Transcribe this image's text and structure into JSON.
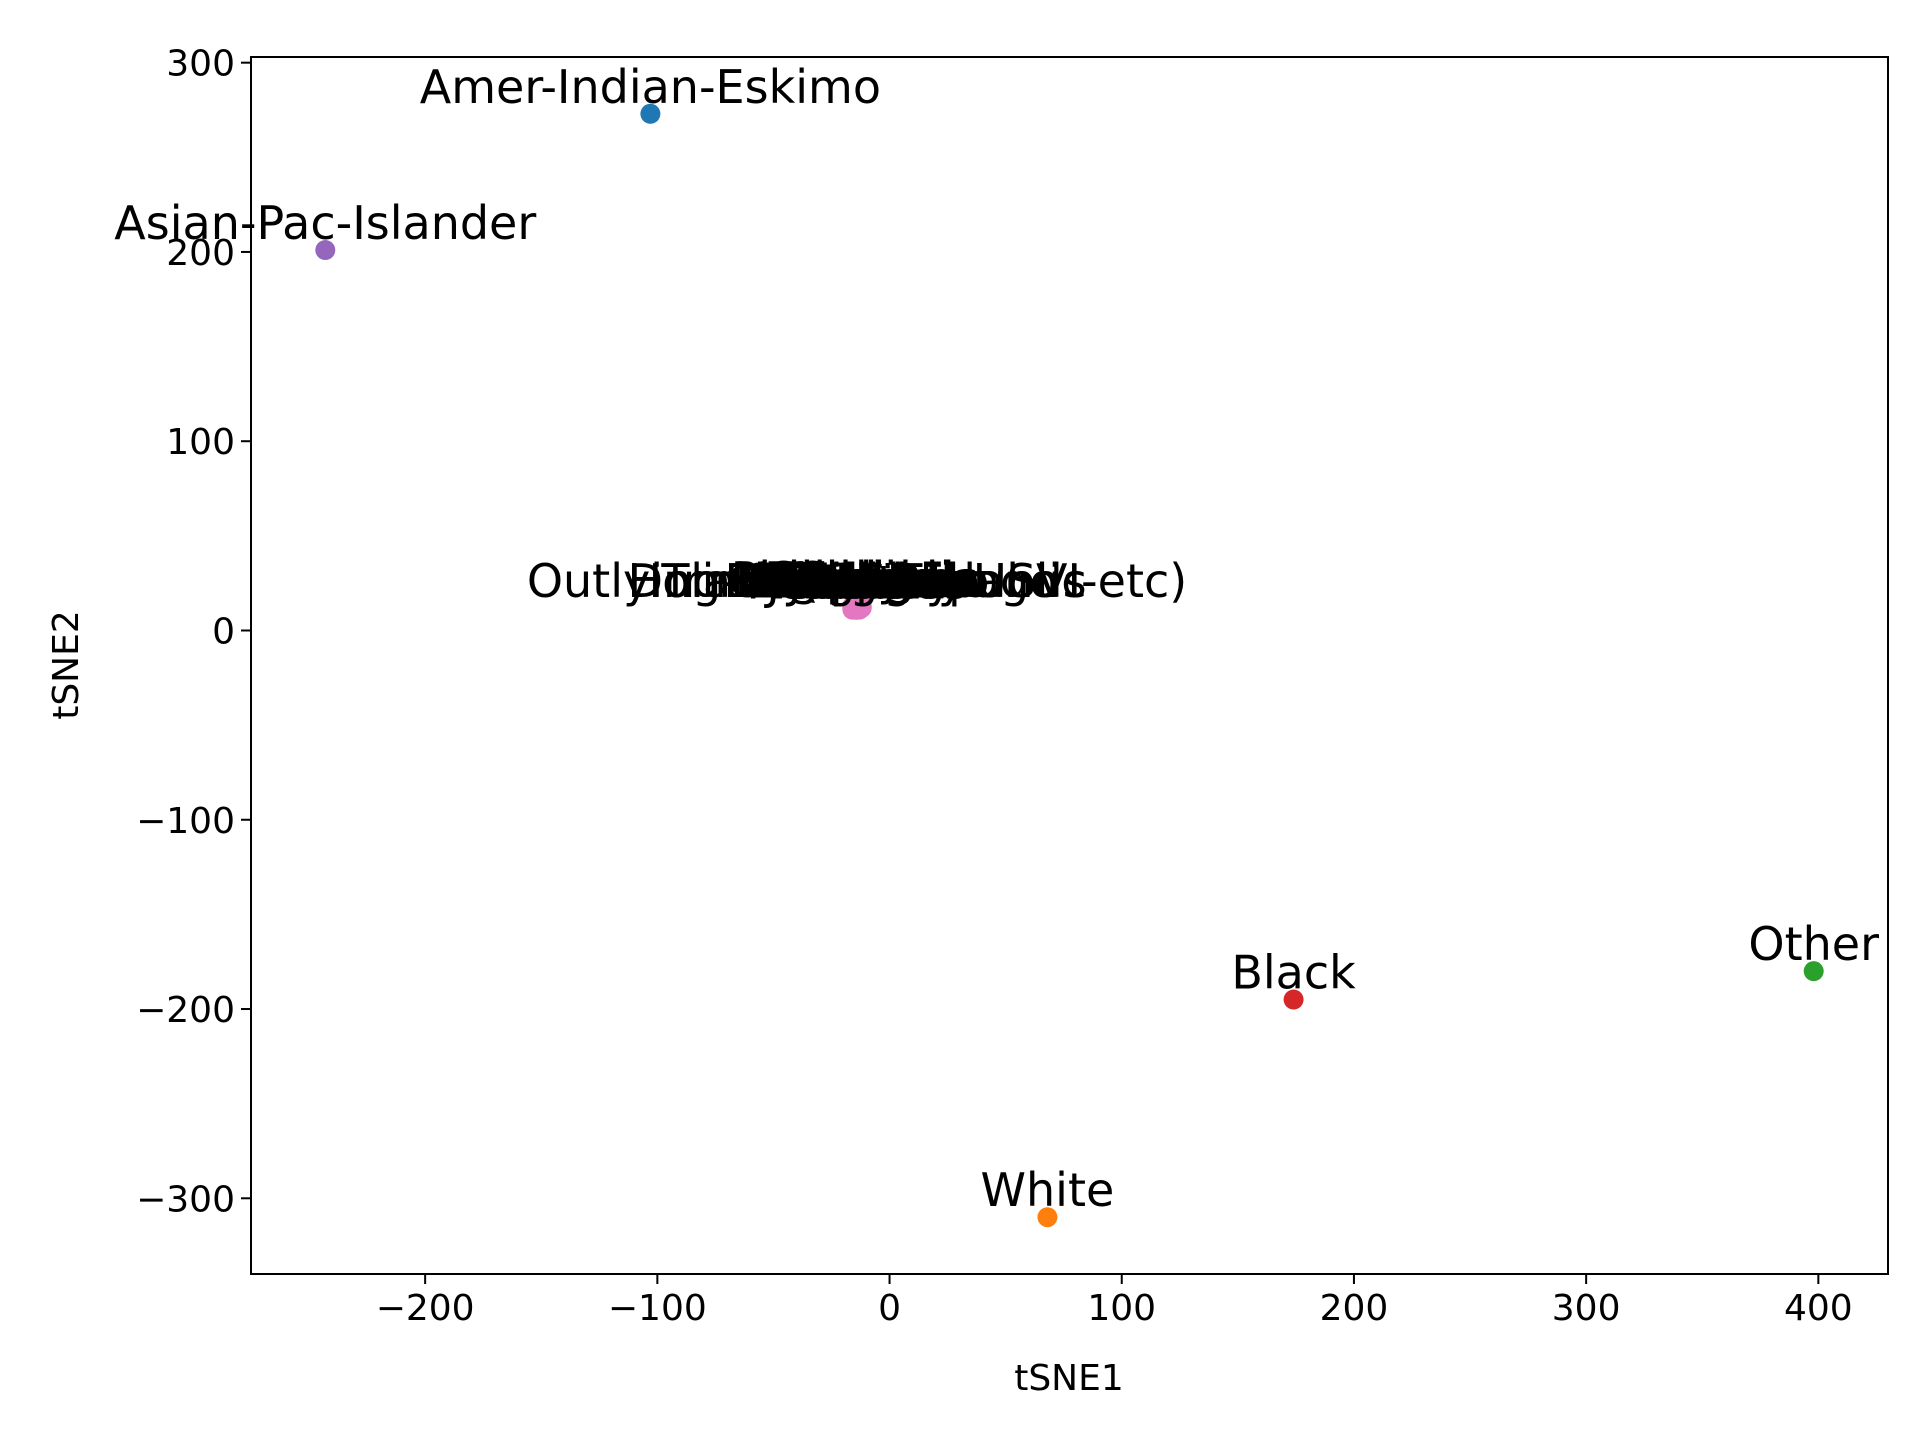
{
  "chart_data": {
    "type": "scatter",
    "title": "",
    "xlabel": "tSNE1",
    "ylabel": "tSNE2",
    "xlim": [
      -275,
      430
    ],
    "ylim": [
      -340,
      303
    ],
    "xticks": [
      -200,
      -100,
      0,
      100,
      200,
      300,
      400
    ],
    "yticks": [
      -300,
      -200,
      -100,
      0,
      100,
      200,
      300
    ],
    "xtick_labels": [
      "−200",
      "−100",
      "0",
      "100",
      "200",
      "300",
      "400"
    ],
    "ytick_labels": [
      "−300",
      "−200",
      "−100",
      "0",
      "100",
      "200",
      "300"
    ],
    "grid": false,
    "legend": "none",
    "points": [
      {
        "label": "Amer-Indian-Eskimo",
        "x": -103,
        "y": 273,
        "color": "#1f77b4"
      },
      {
        "label": "Asian-Pac-Islander",
        "x": -243,
        "y": 201,
        "color": "#9467bd"
      },
      {
        "label": "White",
        "x": 68,
        "y": -310,
        "color": "#ff7f0e"
      },
      {
        "label": "Black",
        "x": 174,
        "y": -195,
        "color": "#d62728"
      },
      {
        "label": "Other",
        "x": 398,
        "y": -180,
        "color": "#2ca02c"
      },
      {
        "label": "Mexico",
        "x": -16,
        "y": 12,
        "color": "#e377c2"
      },
      {
        "label": "Philippines",
        "x": -15,
        "y": 13,
        "color": "#e377c2"
      },
      {
        "label": "Puerto-Rico",
        "x": -14,
        "y": 12,
        "color": "#e377c2"
      },
      {
        "label": "El-Salvador",
        "x": -15,
        "y": 12,
        "color": "#e377c2"
      },
      {
        "label": "Germany",
        "x": -13,
        "y": 12,
        "color": "#e377c2"
      },
      {
        "label": "Canada",
        "x": -16,
        "y": 13,
        "color": "#e377c2"
      },
      {
        "label": "India",
        "x": -14,
        "y": 13,
        "color": "#e377c2"
      },
      {
        "label": "Cuba",
        "x": -15,
        "y": 11,
        "color": "#e377c2"
      },
      {
        "label": "England",
        "x": -12,
        "y": 12,
        "color": "#e377c2"
      },
      {
        "label": "Jamaica",
        "x": -14,
        "y": 11,
        "color": "#e377c2"
      },
      {
        "label": "South",
        "x": -16,
        "y": 11,
        "color": "#e377c2"
      },
      {
        "label": "China",
        "x": -13,
        "y": 13,
        "color": "#e377c2"
      },
      {
        "label": "Italy",
        "x": -15,
        "y": 13,
        "color": "#e377c2"
      },
      {
        "label": "Dominican-Republic",
        "x": -14,
        "y": 12,
        "color": "#e377c2"
      },
      {
        "label": "Vietnam",
        "x": -13,
        "y": 11,
        "color": "#e377c2"
      },
      {
        "label": "Guatemala",
        "x": -15,
        "y": 12,
        "color": "#e377c2"
      },
      {
        "label": "Japan",
        "x": -16,
        "y": 12,
        "color": "#e377c2"
      },
      {
        "label": "Poland",
        "x": -12,
        "y": 13,
        "color": "#e377c2"
      },
      {
        "label": "Columbia",
        "x": -14,
        "y": 12,
        "color": "#e377c2"
      },
      {
        "label": "Taiwan",
        "x": -13,
        "y": 12,
        "color": "#e377c2"
      },
      {
        "label": "Haiti",
        "x": -15,
        "y": 11,
        "color": "#e377c2"
      },
      {
        "label": "Iran",
        "x": -14,
        "y": 13,
        "color": "#e377c2"
      },
      {
        "label": "Portugal",
        "x": -13,
        "y": 13,
        "color": "#e377c2"
      },
      {
        "label": "Nicaragua",
        "x": -16,
        "y": 12,
        "color": "#e377c2"
      },
      {
        "label": "Peru",
        "x": -14,
        "y": 11,
        "color": "#e377c2"
      },
      {
        "label": "Greece",
        "x": -15,
        "y": 12,
        "color": "#e377c2"
      },
      {
        "label": "France",
        "x": -13,
        "y": 12,
        "color": "#e377c2"
      },
      {
        "label": "Ecuador",
        "x": -14,
        "y": 12,
        "color": "#e377c2"
      },
      {
        "label": "Ireland",
        "x": -12,
        "y": 12,
        "color": "#e377c2"
      },
      {
        "label": "Hong",
        "x": -15,
        "y": 13,
        "color": "#e377c2"
      },
      {
        "label": "Cambodia",
        "x": -14,
        "y": 12,
        "color": "#e377c2"
      },
      {
        "label": "Trinadad&Tobago",
        "x": -13,
        "y": 12,
        "color": "#e377c2"
      },
      {
        "label": "Thailand",
        "x": -14,
        "y": 12,
        "color": "#e377c2"
      },
      {
        "label": "Laos",
        "x": -15,
        "y": 12,
        "color": "#e377c2"
      },
      {
        "label": "Yugoslavia",
        "x": -13,
        "y": 13,
        "color": "#e377c2"
      },
      {
        "label": "Outlying-US(Guam-USVI-etc)",
        "x": -14,
        "y": 12,
        "color": "#e377c2"
      },
      {
        "label": "Hungary",
        "x": -15,
        "y": 12,
        "color": "#e377c2"
      },
      {
        "label": "Honduras",
        "x": -14,
        "y": 11,
        "color": "#e377c2"
      },
      {
        "label": "Scotland",
        "x": -13,
        "y": 12,
        "color": "#e377c2"
      },
      {
        "label": "Holand-Netherlands",
        "x": -14,
        "y": 12,
        "color": "#e377c2"
      }
    ]
  }
}
